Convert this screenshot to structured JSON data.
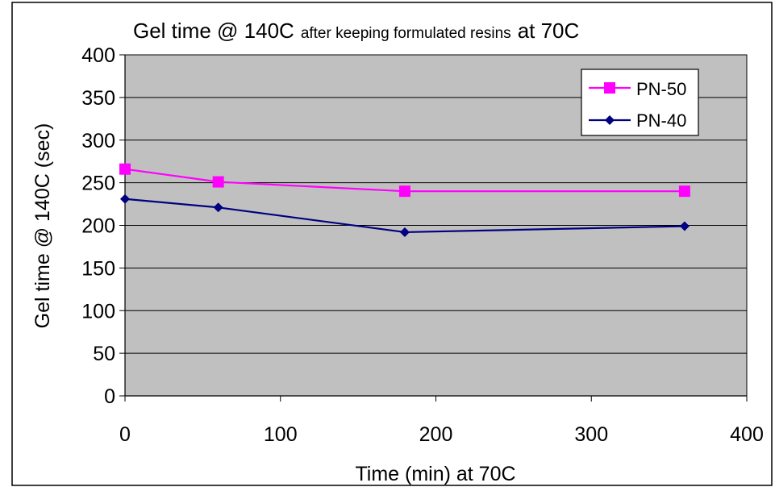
{
  "chart_data": {
    "type": "line",
    "title_main": "Gel time @ 140C",
    "title_small": "after keeping formulated resins",
    "title_end": "at 70C",
    "xlabel": "Time (min) at 70C",
    "ylabel": "Gel time @ 140C (sec)",
    "xlim": [
      0,
      400
    ],
    "ylim": [
      0,
      400
    ],
    "x_ticks": [
      "0",
      "100",
      "200",
      "300",
      "400"
    ],
    "y_ticks": [
      "0",
      "50",
      "100",
      "150",
      "200",
      "250",
      "300",
      "350",
      "400"
    ],
    "x_tick_values": [
      0,
      100,
      200,
      300,
      400
    ],
    "y_tick_values": [
      0,
      50,
      100,
      150,
      200,
      250,
      300,
      350,
      400
    ],
    "grid": true,
    "legend_position": "top-right",
    "series": [
      {
        "name": "PN-50",
        "color": "#ff00ff",
        "marker": "square",
        "points": [
          [
            0,
            266
          ],
          [
            60,
            251
          ],
          [
            180,
            240
          ],
          [
            360,
            240
          ]
        ]
      },
      {
        "name": "PN-40",
        "color": "#000080",
        "marker": "diamond",
        "points": [
          [
            0,
            231
          ],
          [
            60,
            221
          ],
          [
            180,
            192
          ],
          [
            360,
            199
          ]
        ]
      }
    ],
    "colors": {
      "plot_background": "#c0c0c0",
      "frame": "#000000",
      "gridline": "#000000"
    }
  }
}
